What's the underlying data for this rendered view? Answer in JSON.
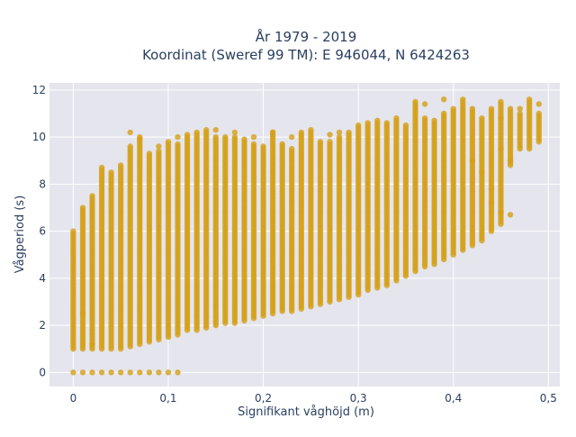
{
  "chart_data": {
    "type": "scatter",
    "title_line1": "År 1979 - 2019",
    "title_line2": "Koordinat (Sweref 99 TM): E 946044, N 6424263",
    "xlabel": "Signifikant våghöjd (m)",
    "ylabel": "Vågperiod (s)",
    "xlim": [
      -0.025,
      0.512
    ],
    "ylim": [
      -0.6,
      12.3
    ],
    "x_ticks": [
      0,
      0.1,
      0.2,
      0.3,
      0.4,
      0.5
    ],
    "x_tick_labels": [
      "0",
      "0,1",
      "0,2",
      "0,3",
      "0,4",
      "0,5"
    ],
    "y_ticks": [
      0,
      2,
      4,
      6,
      8,
      10,
      12
    ],
    "y_tick_labels": [
      "0",
      "2",
      "4",
      "6",
      "8",
      "10",
      "12"
    ],
    "grid": true,
    "marker_color": "#D4A017",
    "plot_background": "#E5E5EE",
    "x_step": 0.01,
    "y_step": 0.1,
    "point_ranges": [
      {
        "x": 0.0,
        "segments": [
          [
            1.0,
            6.0
          ],
          [
            0.0,
            0.0
          ]
        ]
      },
      {
        "x": 0.01,
        "segments": [
          [
            1.0,
            7.0
          ],
          [
            0.0,
            0.0
          ]
        ]
      },
      {
        "x": 0.02,
        "segments": [
          [
            1.0,
            7.5
          ],
          [
            0.0,
            0.0
          ]
        ]
      },
      {
        "x": 0.03,
        "segments": [
          [
            1.0,
            8.7
          ],
          [
            0.0,
            0.0
          ]
        ]
      },
      {
        "x": 0.04,
        "segments": [
          [
            1.0,
            8.5
          ],
          [
            0.0,
            0.0
          ]
        ]
      },
      {
        "x": 0.05,
        "segments": [
          [
            1.0,
            8.8
          ],
          [
            0.0,
            0.0
          ]
        ]
      },
      {
        "x": 0.06,
        "segments": [
          [
            1.1,
            9.6
          ],
          [
            0.0,
            0.0
          ]
        ]
      },
      {
        "x": 0.07,
        "segments": [
          [
            1.2,
            10.0
          ],
          [
            0.0,
            0.0
          ]
        ]
      },
      {
        "x": 0.08,
        "segments": [
          [
            1.3,
            9.3
          ],
          [
            0.0,
            0.0
          ]
        ]
      },
      {
        "x": 0.09,
        "segments": [
          [
            1.4,
            9.4
          ],
          [
            0.0,
            0.0
          ]
        ]
      },
      {
        "x": 0.1,
        "segments": [
          [
            1.5,
            9.8
          ],
          [
            0.0,
            0.0
          ]
        ]
      },
      {
        "x": 0.11,
        "segments": [
          [
            1.6,
            9.7
          ],
          [
            0.0,
            0.0
          ]
        ]
      },
      {
        "x": 0.12,
        "segments": [
          [
            1.8,
            10.1
          ]
        ]
      },
      {
        "x": 0.13,
        "segments": [
          [
            1.8,
            10.1
          ]
        ]
      },
      {
        "x": 0.14,
        "segments": [
          [
            1.9,
            10.3
          ]
        ]
      },
      {
        "x": 0.15,
        "segments": [
          [
            2.0,
            10.0
          ]
        ]
      },
      {
        "x": 0.16,
        "segments": [
          [
            2.1,
            10.0
          ]
        ]
      },
      {
        "x": 0.17,
        "segments": [
          [
            2.1,
            10.0
          ]
        ]
      },
      {
        "x": 0.18,
        "segments": [
          [
            2.2,
            9.9
          ]
        ]
      },
      {
        "x": 0.19,
        "segments": [
          [
            2.3,
            9.7
          ]
        ]
      },
      {
        "x": 0.2,
        "segments": [
          [
            2.4,
            9.6
          ]
        ]
      },
      {
        "x": 0.21,
        "segments": [
          [
            2.5,
            10.2
          ]
        ]
      },
      {
        "x": 0.22,
        "segments": [
          [
            2.6,
            9.7
          ]
        ]
      },
      {
        "x": 0.23,
        "segments": [
          [
            2.6,
            9.5
          ]
        ]
      },
      {
        "x": 0.24,
        "segments": [
          [
            2.7,
            10.2
          ]
        ]
      },
      {
        "x": 0.25,
        "segments": [
          [
            2.8,
            10.2
          ]
        ]
      },
      {
        "x": 0.26,
        "segments": [
          [
            2.9,
            9.8
          ]
        ]
      },
      {
        "x": 0.27,
        "segments": [
          [
            3.0,
            9.8
          ]
        ]
      },
      {
        "x": 0.28,
        "segments": [
          [
            3.1,
            10.0
          ]
        ]
      },
      {
        "x": 0.29,
        "segments": [
          [
            3.2,
            10.2
          ]
        ]
      },
      {
        "x": 0.3,
        "segments": [
          [
            3.3,
            10.5
          ]
        ]
      },
      {
        "x": 0.31,
        "segments": [
          [
            3.5,
            10.6
          ]
        ]
      },
      {
        "x": 0.32,
        "segments": [
          [
            3.6,
            10.7
          ]
        ]
      },
      {
        "x": 0.33,
        "segments": [
          [
            3.7,
            10.6
          ]
        ]
      },
      {
        "x": 0.34,
        "segments": [
          [
            3.9,
            10.8
          ]
        ]
      },
      {
        "x": 0.35,
        "segments": [
          [
            4.1,
            10.5
          ]
        ]
      },
      {
        "x": 0.36,
        "segments": [
          [
            4.3,
            11.5
          ]
        ]
      },
      {
        "x": 0.37,
        "segments": [
          [
            4.5,
            10.8
          ]
        ]
      },
      {
        "x": 0.38,
        "segments": [
          [
            4.6,
            10.7
          ]
        ]
      },
      {
        "x": 0.39,
        "segments": [
          [
            4.8,
            11.0
          ]
        ]
      },
      {
        "x": 0.4,
        "segments": [
          [
            5.0,
            11.2
          ]
        ]
      },
      {
        "x": 0.41,
        "segments": [
          [
            5.2,
            11.5
          ]
        ]
      },
      {
        "x": 0.42,
        "segments": [
          [
            5.4,
            11.2
          ]
        ]
      },
      {
        "x": 0.43,
        "segments": [
          [
            5.6,
            10.8
          ]
        ]
      },
      {
        "x": 0.44,
        "segments": [
          [
            6.0,
            11.2
          ]
        ]
      },
      {
        "x": 0.45,
        "segments": [
          [
            6.3,
            11.5
          ]
        ]
      },
      {
        "x": 0.46,
        "segments": [
          [
            8.8,
            11.2
          ]
        ]
      },
      {
        "x": 0.47,
        "segments": [
          [
            9.5,
            11.0
          ]
        ]
      },
      {
        "x": 0.48,
        "segments": [
          [
            9.5,
            11.5
          ]
        ]
      },
      {
        "x": 0.49,
        "segments": [
          [
            9.8,
            11.0
          ]
        ]
      }
    ],
    "extra_points": [
      [
        0.01,
        2.5
      ],
      [
        0.02,
        1.2
      ],
      [
        0.06,
        10.2
      ],
      [
        0.07,
        9.9
      ],
      [
        0.09,
        9.6
      ],
      [
        0.11,
        10.0
      ],
      [
        0.13,
        10.2
      ],
      [
        0.15,
        10.3
      ],
      [
        0.17,
        10.2
      ],
      [
        0.19,
        10.0
      ],
      [
        0.21,
        10.2
      ],
      [
        0.23,
        10.0
      ],
      [
        0.25,
        10.3
      ],
      [
        0.27,
        10.1
      ],
      [
        0.28,
        10.2
      ],
      [
        0.42,
        9.0
      ],
      [
        0.43,
        8.5
      ],
      [
        0.44,
        7.2
      ],
      [
        0.45,
        6.8
      ],
      [
        0.46,
        6.7
      ],
      [
        0.44,
        7.8
      ],
      [
        0.45,
        9.5
      ],
      [
        0.47,
        11.2
      ],
      [
        0.48,
        11.6
      ],
      [
        0.49,
        11.4
      ],
      [
        0.46,
        9.0
      ],
      [
        0.45,
        10.8
      ],
      [
        0.41,
        11.6
      ],
      [
        0.39,
        11.6
      ],
      [
        0.37,
        11.4
      ]
    ]
  }
}
